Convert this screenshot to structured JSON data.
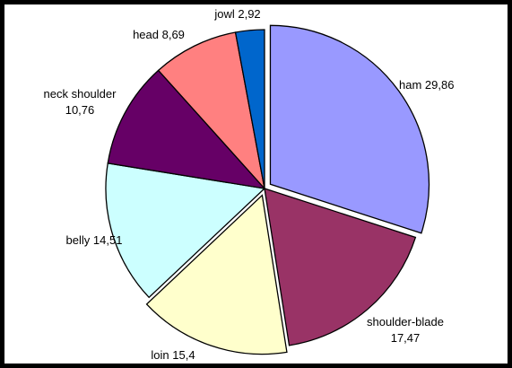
{
  "chart_data": {
    "type": "pie",
    "title": "",
    "start_angle_deg": 0,
    "direction": "clockwise",
    "labels_show_values": true,
    "decimal_separator": ",",
    "slices": [
      {
        "name": "ham",
        "value": 29.86,
        "display": "29,86",
        "color": "#9999FF",
        "exploded": true
      },
      {
        "name": "shoulder-blade",
        "value": 17.47,
        "display": "17,47",
        "color": "#993366",
        "exploded": false
      },
      {
        "name": "loin",
        "value": 15.4,
        "display": "15,4",
        "color": "#FFFFCC",
        "exploded": true
      },
      {
        "name": "belly",
        "value": 14.51,
        "display": "14,51",
        "color": "#CCFFFF",
        "exploded": false
      },
      {
        "name": "neck shoulder",
        "value": 10.76,
        "display": "10,76",
        "color": "#660066",
        "exploded": false
      },
      {
        "name": "head",
        "value": 8.69,
        "display": "8,69",
        "color": "#FF8080",
        "exploded": false
      },
      {
        "name": "jowl",
        "value": 2.92,
        "display": "2,92",
        "color": "#0066CC",
        "exploded": false
      }
    ]
  }
}
